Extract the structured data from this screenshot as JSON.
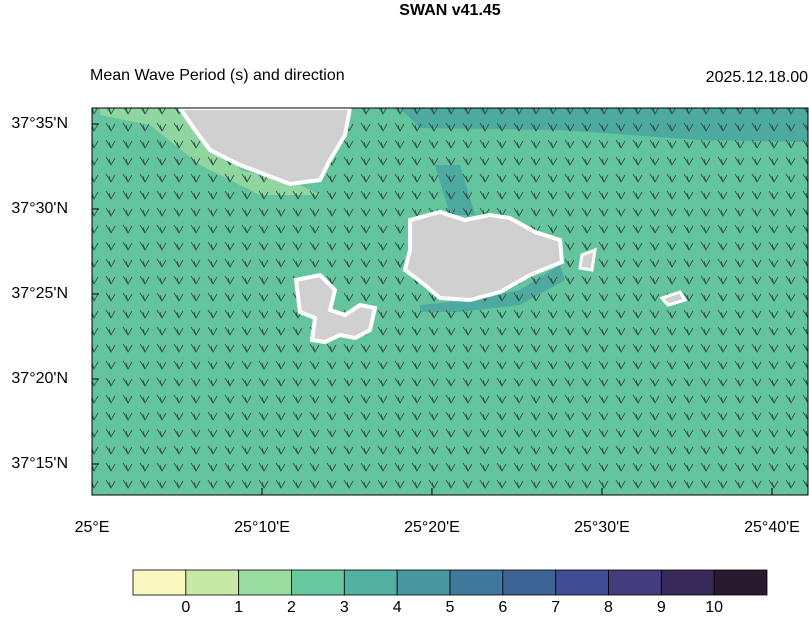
{
  "map": {
    "title": "SWAN v41.45",
    "subtitle_left": "Mean Wave Period (s) and direction",
    "subtitle_right": "2025.12.18.00",
    "lonlim": [
      25,
      25.702
    ],
    "latlim": [
      37.2196,
      37.599
    ],
    "lon_ticks": [
      {
        "value": 25,
        "label": "25°E"
      },
      {
        "value": 25.1667,
        "label": "25°10'E"
      },
      {
        "value": 25.3333,
        "label": "25°20'E"
      },
      {
        "value": 25.5,
        "label": "25°30'E"
      },
      {
        "value": 25.6667,
        "label": "25°40'E"
      }
    ],
    "lat_ticks": [
      {
        "value": 37.5833,
        "label": "37°35'N"
      },
      {
        "value": 37.5,
        "label": "37°30'N"
      },
      {
        "value": 37.4167,
        "label": "37°25'N"
      },
      {
        "value": 37.3333,
        "label": "37°20'N"
      },
      {
        "value": 37.25,
        "label": "37°15'N"
      }
    ],
    "colorbar": {
      "levels": [
        0,
        1,
        2,
        3,
        4,
        5,
        6,
        7,
        8,
        9,
        10
      ],
      "colors": [
        "#f8f8c0",
        "#c8e8a8",
        "#98dca0",
        "#68c8a0",
        "#52b0a0",
        "#4896a0",
        "#40789c",
        "#3c6494",
        "#404c94",
        "#443c7c",
        "#382a58",
        "#2a1a30"
      ]
    }
  }
}
